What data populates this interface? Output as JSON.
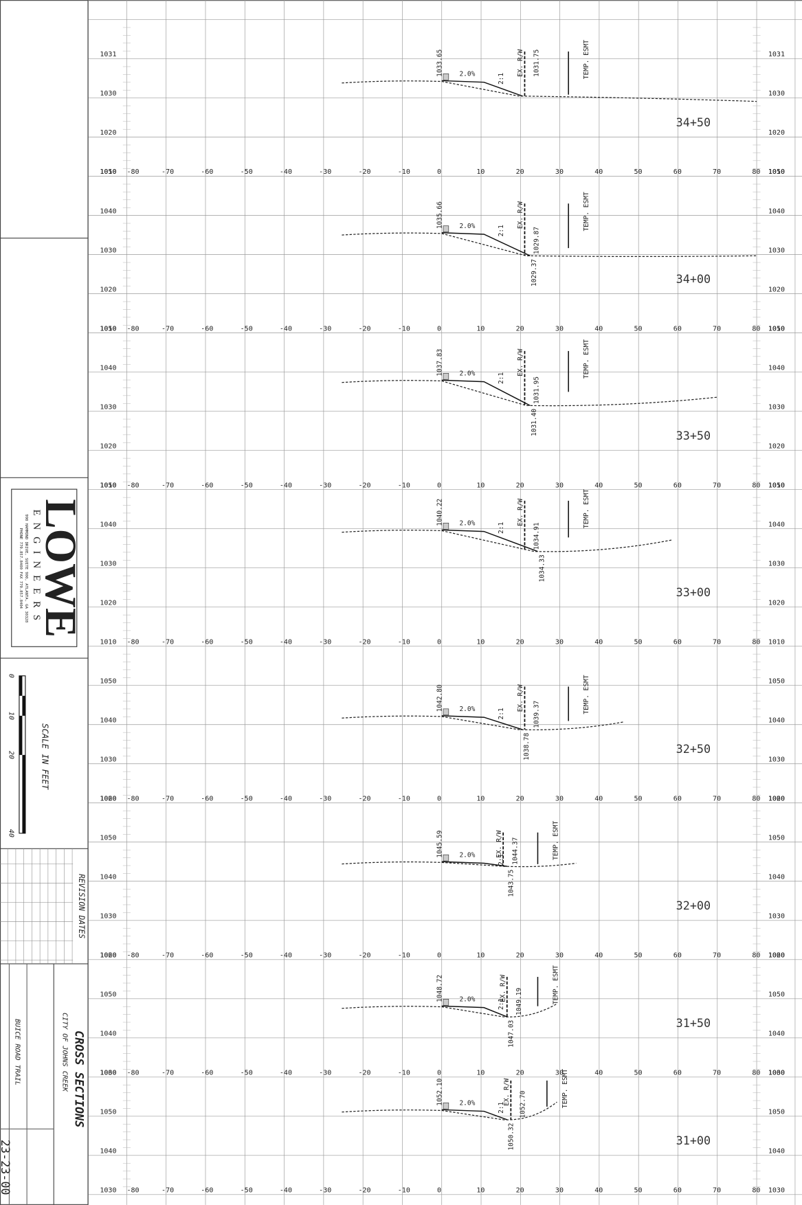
{
  "sheet": {
    "offsets": [
      "-80",
      "-70",
      "-60",
      "-50",
      "-40",
      "-30",
      "-20",
      "-10",
      "0",
      "10",
      "20",
      "30",
      "40",
      "50",
      "60",
      "70",
      "80"
    ],
    "panels": [
      {
        "station": "34+50",
        "elevations": [
          "1031",
          "1030",
          "1020",
          "1010"
        ],
        "center_elevation": "1033.65",
        "slope": "2.0%",
        "side_slope": "2:1",
        "right_elevation": "1031.75",
        "row_label": "EX. R/W",
        "easement_label": "TEMP. ESMT"
      },
      {
        "station": "34+00",
        "elevations": [
          "1050",
          "1040",
          "1030",
          "1020",
          "1010"
        ],
        "center_elevation": "1035.66",
        "slope": "2.0%",
        "side_slope": "2:1",
        "right_elevation": "1029.87",
        "low_elevation": "1029.37",
        "row_label": "EX. R/W",
        "easement_label": "TEMP. ESMT"
      },
      {
        "station": "33+50",
        "elevations": [
          "1050",
          "1040",
          "1030",
          "1020",
          "1010"
        ],
        "center_elevation": "1037.83",
        "slope": "2.0%",
        "side_slope": "2:1",
        "right_elevation": "1031.95",
        "low_elevation": "1031.40",
        "row_label": "EX. R/W",
        "easement_label": "TEMP. ESMT"
      },
      {
        "station": "33+00",
        "elevations": [
          "1050",
          "1040",
          "1030",
          "1020",
          "1010"
        ],
        "center_elevation": "1040.22",
        "slope": "2.0%",
        "side_slope": "2:1",
        "right_elevation": "1034.91",
        "low_elevation": "1034.33",
        "row_label": "EX. R/W",
        "easement_label": "TEMP. ESMT"
      },
      {
        "station": "32+50",
        "elevations": [
          "1050",
          "1040",
          "1030",
          "1020"
        ],
        "center_elevation": "1042.80",
        "slope": "2.0%",
        "side_slope": "2:1",
        "right_elevation": "1039.37",
        "low_elevation": "1038.78",
        "row_label": "EX. R/W",
        "easement_label": "TEMP. ESMT"
      },
      {
        "station": "32+00",
        "elevations": [
          "1060",
          "1050",
          "1040",
          "1030",
          "1020"
        ],
        "center_elevation": "1045.59",
        "slope": "2.0%",
        "side_slope": "2:1",
        "right_elevation": "1044.37",
        "low_elevation": "1043.75",
        "row_label": "EX. R/W",
        "easement_label": "TEMP. ESMT"
      },
      {
        "station": "31+50",
        "elevations": [
          "1060",
          "1050",
          "1040",
          "1030"
        ],
        "center_elevation": "1048.72",
        "slope": "2.0%",
        "side_slope": "2:1",
        "right_elevation": "1049.19",
        "low_elevation": "1047.03",
        "row_label": "EX. R/W",
        "easement_label": "TEMP. ESMT"
      },
      {
        "station": "31+00",
        "elevations": [
          "1060",
          "1050",
          "1040",
          "1030"
        ],
        "center_elevation": "1052.10",
        "slope": "2.0%",
        "side_slope": "2:1",
        "right_elevation": "1052.70",
        "low_elevation": "1050.32",
        "row_label": "EX. R/W",
        "easement_label": "TEMP. ESMT"
      }
    ]
  },
  "title_block": {
    "firm": "LOWE",
    "firm_sub": "ENGINEERS",
    "address": "990 HAMMOND DRIVE, SUITE 900, ATLANTA, GA 30328",
    "phone": "PHONE 770.857.8400   FAX 770.857.8404",
    "scale_title": "SCALE IN FEET",
    "scale_ticks": [
      "0",
      "10",
      "20",
      "40"
    ],
    "revisions": "REVISION DATES",
    "drawing_title": "CROSS SECTIONS",
    "client": "CITY OF JOHNS CREEK",
    "project": "BUICE ROAD TRAIL",
    "sheet_number": "23-23-00"
  }
}
